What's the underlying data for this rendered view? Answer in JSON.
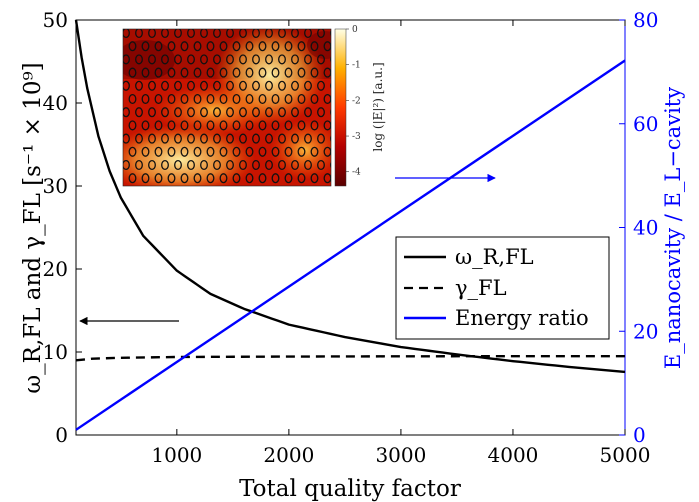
{
  "chart_data": {
    "type": "line",
    "xlabel": "Total quality factor",
    "ylabel_left": "ω_R,FL and γ_FL [s⁻¹ × 10⁹]",
    "ylabel_right": "E_nanocavity / E_L−cavity",
    "xlim": [
      100,
      5000
    ],
    "ylim_left": [
      0,
      50
    ],
    "ylim_right": [
      0,
      80
    ],
    "xticks": [
      1000,
      2000,
      3000,
      4000,
      5000
    ],
    "yticks_left": [
      0,
      10,
      20,
      30,
      40,
      50
    ],
    "yticks_right": [
      0,
      20,
      40,
      60,
      80
    ],
    "grid": false,
    "legend_position": "lower-right",
    "series": [
      {
        "name": "ω_R,FL",
        "axis": "left",
        "color": "#000000",
        "style": "solid",
        "x": [
          100,
          150,
          200,
          300,
          400,
          500,
          700,
          1000,
          1300,
          1600,
          2000,
          2500,
          3000,
          3500,
          4000,
          4500,
          5000
        ],
        "y": [
          50,
          45.5,
          41.8,
          36.0,
          31.8,
          28.6,
          24.0,
          19.8,
          17.0,
          15.2,
          13.3,
          11.8,
          10.6,
          9.7,
          8.9,
          8.2,
          7.6
        ]
      },
      {
        "name": "γ_FL",
        "axis": "left",
        "color": "#000000",
        "style": "dashed",
        "x": [
          100,
          250,
          500,
          1000,
          2000,
          3000,
          4000,
          5000
        ],
        "y": [
          9.0,
          9.2,
          9.3,
          9.4,
          9.45,
          9.48,
          9.5,
          9.5
        ]
      },
      {
        "name": "Energy ratio",
        "axis": "right",
        "color": "#0000ff",
        "style": "solid",
        "x": [
          100,
          5000
        ],
        "y": [
          1.0,
          72.2
        ]
      }
    ],
    "annotations": [
      {
        "type": "arrow",
        "points_to": "left-axis",
        "color": "#000000"
      },
      {
        "type": "arrow",
        "points_to": "right-axis",
        "color": "#0000ff"
      }
    ],
    "inset": {
      "type": "heatmap",
      "colormap": "hot",
      "colorbar_label": "log (|E|²) [a.u.]",
      "colorbar_ticks": [
        "0",
        "-1",
        "-2",
        "-3",
        "-4"
      ],
      "colorbar_range": [
        -4.4,
        0
      ]
    }
  }
}
